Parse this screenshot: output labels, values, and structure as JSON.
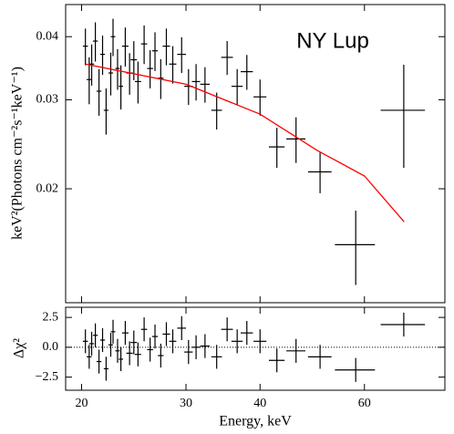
{
  "chart_data": [
    {
      "type": "errorbar",
      "annotation": "NY Lup",
      "ylabel": "keV²(Photons cm⁻²s⁻¹keV⁻¹)",
      "log_x": true,
      "log_y": true,
      "xlim": [
        18.8,
        82
      ],
      "ylim": [
        0.0119,
        0.0463
      ],
      "xticks": [
        20,
        30,
        40,
        60
      ],
      "yticks": [
        0.02,
        0.03,
        0.04
      ],
      "x": [
        20.3,
        20.6,
        20.8,
        21.1,
        21.4,
        21.7,
        22.0,
        22.4,
        22.6,
        23.0,
        23.3,
        23.7,
        24.1,
        24.5,
        24.9,
        25.5,
        26.1,
        26.6,
        27.2,
        27.8,
        28.5,
        29.5,
        30.3,
        31.2,
        32.3,
        33.8,
        35.2,
        36.6,
        38.0,
        40.0,
        42.7,
        46.0,
        50.5,
        58.0,
        69.9
      ],
      "xerr": [
        0.2,
        0.2,
        0.2,
        0.2,
        0.2,
        0.2,
        0.2,
        0.2,
        0.2,
        0.2,
        0.2,
        0.3,
        0.3,
        0.3,
        0.3,
        0.3,
        0.3,
        0.3,
        0.3,
        0.4,
        0.4,
        0.5,
        0.5,
        0.5,
        0.6,
        0.7,
        0.8,
        0.8,
        0.9,
        1.0,
        1.3,
        1.7,
        2.3,
        4.5,
        6.0
      ],
      "values": [
        0.0383,
        0.0329,
        0.0353,
        0.0392,
        0.0312,
        0.0369,
        0.0286,
        0.0339,
        0.04,
        0.0346,
        0.0319,
        0.0383,
        0.0339,
        0.036,
        0.0326,
        0.0387,
        0.0346,
        0.0375,
        0.0331,
        0.0383,
        0.0353,
        0.0369,
        0.0319,
        0.0326,
        0.0322,
        0.0286,
        0.0364,
        0.0319,
        0.0341,
        0.0304,
        0.0242,
        0.0251,
        0.0216,
        0.0155,
        0.0286
      ],
      "yerr": [
        0.0032,
        0.0035,
        0.0033,
        0.0035,
        0.0033,
        0.0033,
        0.003,
        0.0033,
        0.0034,
        0.0032,
        0.0032,
        0.0034,
        0.0032,
        0.0032,
        0.0031,
        0.0034,
        0.003,
        0.0033,
        0.003,
        0.0032,
        0.003,
        0.003,
        0.0026,
        0.0027,
        0.0026,
        0.0024,
        0.0028,
        0.0026,
        0.0027,
        0.0025,
        0.0022,
        0.0026,
        0.002,
        0.0026,
        0.0066
      ],
      "color": "#000000",
      "model_x": [
        20.3,
        30,
        40,
        50,
        60,
        70
      ],
      "model_values": [
        0.0353,
        0.0322,
        0.0281,
        0.0238,
        0.0212,
        0.0172
      ],
      "model_color": "#ff0000"
    },
    {
      "type": "errorbar",
      "ylabel": "Δχ²",
      "xlabel": "Energy, keV",
      "log_x": true,
      "xlim": [
        18.8,
        82
      ],
      "ylim": [
        -3.6,
        3.35
      ],
      "xticks": [
        20,
        30,
        40,
        60
      ],
      "yticks": [
        {
          "value": 2.5,
          "label": "2.5"
        },
        {
          "value": 0,
          "label": "0.0"
        },
        {
          "value": -2.5,
          "label": "−2.5"
        }
      ],
      "x": [
        20.3,
        20.6,
        20.8,
        21.1,
        21.4,
        21.7,
        22.0,
        22.4,
        22.6,
        23.0,
        23.3,
        23.7,
        24.1,
        24.5,
        24.9,
        25.5,
        26.1,
        26.6,
        27.2,
        27.8,
        28.5,
        29.5,
        30.3,
        31.2,
        32.3,
        33.8,
        35.2,
        36.6,
        38.0,
        40.0,
        42.7,
        46.0,
        50.5,
        58.0,
        69.9
      ],
      "xerr": [
        0.2,
        0.2,
        0.2,
        0.2,
        0.2,
        0.2,
        0.2,
        0.2,
        0.2,
        0.2,
        0.2,
        0.3,
        0.3,
        0.3,
        0.3,
        0.3,
        0.3,
        0.3,
        0.3,
        0.4,
        0.4,
        0.5,
        0.5,
        0.5,
        0.6,
        0.7,
        0.8,
        0.8,
        0.9,
        1.0,
        1.3,
        1.7,
        2.3,
        4.5,
        6.0
      ],
      "values": [
        0.5,
        -0.8,
        0.3,
        1.0,
        -1.2,
        0.6,
        -1.8,
        0.2,
        1.3,
        -0.3,
        -1.0,
        1.2,
        -0.5,
        0.4,
        -0.6,
        1.5,
        -0.2,
        0.9,
        -0.7,
        1.1,
        0.5,
        1.6,
        -0.4,
        0.0,
        0.1,
        -0.8,
        1.5,
        0.5,
        1.2,
        0.5,
        -1.1,
        -0.3,
        -0.8,
        -1.9,
        1.9
      ],
      "yerr": [
        1,
        1,
        1,
        1,
        1,
        1,
        1,
        1,
        1,
        1,
        1,
        1,
        1,
        1,
        1,
        1,
        1,
        1,
        1,
        1,
        1,
        1,
        1,
        1,
        1,
        1,
        1,
        1,
        1,
        1,
        1,
        1,
        1,
        1,
        1
      ],
      "color": "#000000",
      "zero_line": 0
    }
  ]
}
